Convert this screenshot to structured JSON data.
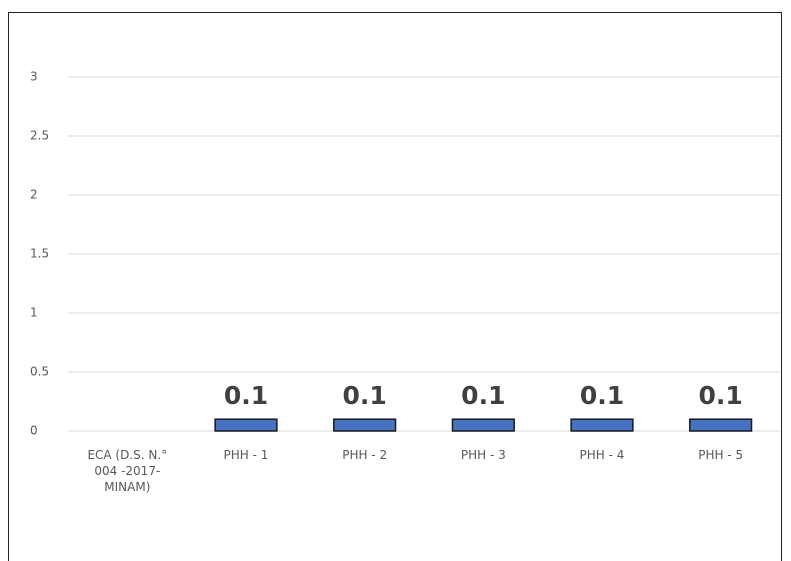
{
  "chart_data": {
    "type": "bar",
    "categories": [
      "ECA (D.S. N.° 004 -2017- MINAM)",
      "PHH - 1",
      "PHH - 2",
      "PHH - 3",
      "PHH - 4",
      "PHH - 5"
    ],
    "values": [
      0,
      0.1,
      0.1,
      0.1,
      0.1,
      0.1
    ],
    "value_labels": [
      null,
      "0.1",
      "0.1",
      "0.1",
      "0.1",
      "0.1"
    ],
    "color": "#4472c4",
    "ylim": [
      0,
      3
    ],
    "yticks": [
      0,
      0.5,
      1,
      1.5,
      2,
      2.5,
      3
    ],
    "grid": true
  }
}
